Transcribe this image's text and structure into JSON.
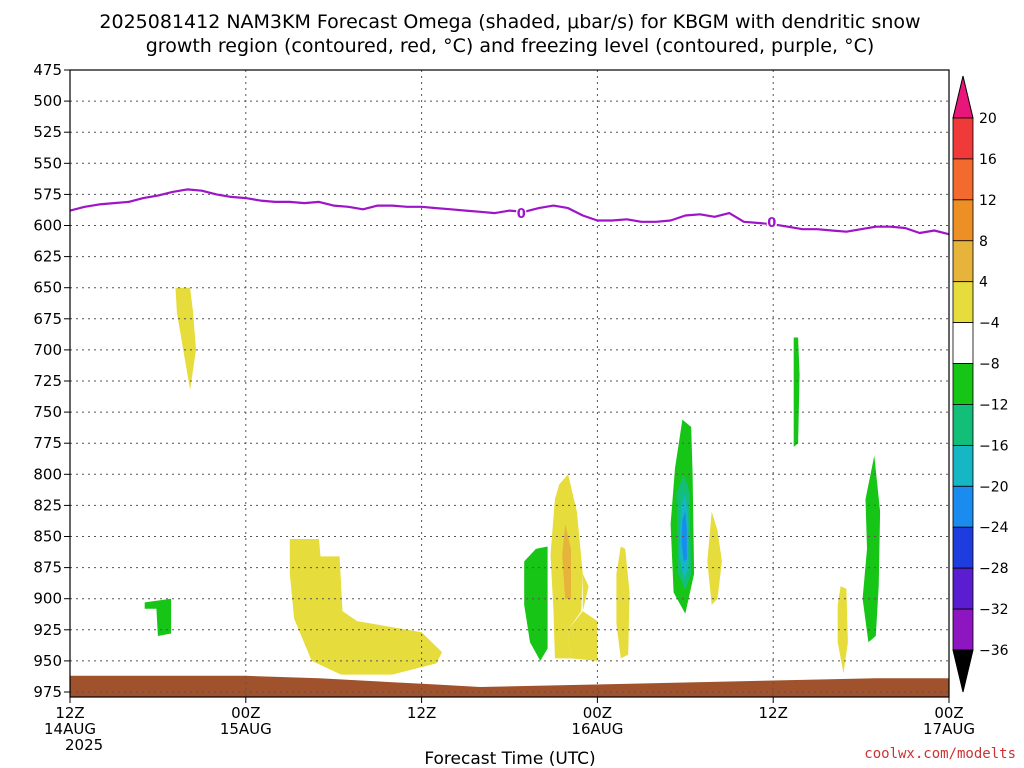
{
  "title_line1": "2025081412 NAM3KM Forecast Omega (shaded, μbar/s) for KBGM with dendritic snow",
  "title_line2": "growth region (contoured, red, °C) and freezing level (contoured, purple, °C)",
  "credit": "coolwx.com/modelts",
  "credit_color": "#cc3333",
  "chart_data": {
    "type": "heatmap",
    "title": "2025081412 NAM3KM Forecast Omega (shaded, μbar/s) for KBGM with dendritic snow growth region (contoured, red, °C) and freezing level (contoured, purple, °C)",
    "xlabel": "Forecast Time (UTC)",
    "ylabel": "",
    "x_unit": "hours after 2025081412",
    "xlim": [
      0,
      60
    ],
    "ylim": [
      975,
      475
    ],
    "y_ticks": [
      475,
      500,
      525,
      550,
      575,
      600,
      625,
      650,
      675,
      700,
      725,
      750,
      775,
      800,
      825,
      850,
      875,
      900,
      925,
      950,
      975
    ],
    "x_ticks": [
      {
        "x": 0,
        "line1": "12Z",
        "line2": "14AUG",
        "line3": "2025"
      },
      {
        "x": 12,
        "line1": "00Z",
        "line2": "15AUG"
      },
      {
        "x": 24,
        "line1": "12Z"
      },
      {
        "x": 36,
        "line1": "00Z",
        "line2": "16AUG"
      },
      {
        "x": 48,
        "line1": "12Z"
      },
      {
        "x": 60,
        "line1": "00Z",
        "line2": "17AUG"
      }
    ],
    "grid": true,
    "colorbar": {
      "levels": [
        20,
        16,
        12,
        8,
        4,
        -4,
        -8,
        -12,
        -16,
        -20,
        -24,
        -28,
        -32,
        -36
      ],
      "colors": [
        "#e8157a",
        "#f03a3a",
        "#f26a2e",
        "#ec8f24",
        "#e6b43a",
        "#e6dc3c",
        "#ffffff",
        "#16c516",
        "#13bf78",
        "#14b7c3",
        "#1a8cf0",
        "#1f3ddf",
        "#5a1ed0",
        "#8e16c0",
        "#aaaaaa",
        "#000000"
      ]
    },
    "freezing_level": {
      "color": "#9e14c8",
      "label": "0",
      "label_at": [
        {
          "x": 30.8,
          "p": 590
        },
        {
          "x": 47.9,
          "p": 597
        }
      ],
      "x": [
        0,
        1,
        2,
        3,
        4,
        5,
        6,
        7,
        8,
        9,
        10,
        11,
        12,
        13,
        14,
        15,
        16,
        17,
        18,
        19,
        20,
        21,
        22,
        23,
        24,
        25,
        26,
        27,
        28,
        29,
        30,
        31,
        32,
        33,
        34,
        35,
        36,
        37,
        38,
        39,
        40,
        41,
        42,
        43,
        44,
        45,
        46,
        47,
        48,
        49,
        50,
        51,
        52,
        53,
        54,
        55,
        56,
        57,
        58,
        59,
        60
      ],
      "p": [
        588,
        585,
        583,
        582,
        581,
        578,
        576,
        573,
        571,
        572,
        575,
        577,
        578,
        580,
        581,
        581,
        582,
        581,
        584,
        585,
        587,
        584,
        584,
        585,
        585,
        586,
        587,
        588,
        589,
        590,
        588,
        589,
        586,
        584,
        586,
        592,
        596,
        596,
        595,
        597,
        597,
        596,
        592,
        591,
        593,
        590,
        597,
        598,
        599,
        601,
        603,
        603,
        604,
        605,
        603,
        601,
        601,
        602,
        606,
        604,
        607
      ]
    },
    "omega_regions": [
      {
        "category": "4 to 8",
        "color": "#e6dc3c",
        "pts": [
          [
            7.2,
            650
          ],
          [
            8.2,
            650
          ],
          [
            8.4,
            670
          ],
          [
            8.6,
            700
          ],
          [
            8.2,
            732
          ],
          [
            7.8,
            705
          ],
          [
            7.3,
            670
          ]
        ]
      },
      {
        "category": "4 to 8",
        "color": "#e6dc3c",
        "pts": [
          [
            15.0,
            852
          ],
          [
            17.0,
            852
          ],
          [
            17.1,
            866
          ],
          [
            18.4,
            866
          ],
          [
            18.6,
            910
          ],
          [
            19.6,
            918
          ],
          [
            24.0,
            927
          ],
          [
            25.4,
            943
          ],
          [
            25.0,
            952
          ],
          [
            22.0,
            961
          ],
          [
            18.5,
            961
          ],
          [
            16.5,
            950
          ],
          [
            15.3,
            916
          ],
          [
            15.0,
            880
          ]
        ]
      },
      {
        "category": "4 to 8",
        "color": "#e6dc3c",
        "pts": [
          [
            33.4,
            808
          ],
          [
            34.0,
            800
          ],
          [
            34.6,
            830
          ],
          [
            35.0,
            880
          ],
          [
            34.9,
            910
          ],
          [
            34.0,
            925
          ],
          [
            34.2,
            948
          ],
          [
            33.1,
            948
          ],
          [
            33.0,
            910
          ],
          [
            32.8,
            865
          ],
          [
            33.1,
            820
          ]
        ]
      },
      {
        "category": "4 to 8",
        "color": "#e6dc3c",
        "pts": [
          [
            34.0,
            925
          ],
          [
            35.0,
            910
          ],
          [
            36.0,
            918
          ],
          [
            36.0,
            950
          ],
          [
            34.2,
            948
          ]
        ]
      },
      {
        "category": "4 to 8",
        "color": "#e6dc3c",
        "pts": [
          [
            35.0,
            880
          ],
          [
            35.4,
            890
          ],
          [
            35.0,
            910
          ]
        ]
      },
      {
        "category": "4 to 8",
        "color": "#e6dc3c",
        "pts": [
          [
            37.6,
            858
          ],
          [
            37.9,
            860
          ],
          [
            38.2,
            895
          ],
          [
            38.1,
            945
          ],
          [
            37.6,
            948
          ],
          [
            37.3,
            920
          ],
          [
            37.3,
            880
          ]
        ]
      },
      {
        "category": "4 to 8",
        "color": "#e6dc3c",
        "pts": [
          [
            43.8,
            830
          ],
          [
            44.2,
            845
          ],
          [
            44.5,
            870
          ],
          [
            44.2,
            900
          ],
          [
            43.8,
            905
          ],
          [
            43.5,
            870
          ]
        ]
      },
      {
        "category": "4 to 8",
        "color": "#e6dc3c",
        "pts": [
          [
            52.6,
            890
          ],
          [
            53.0,
            892
          ],
          [
            53.1,
            935
          ],
          [
            52.8,
            960
          ],
          [
            52.4,
            935
          ],
          [
            52.4,
            905
          ]
        ]
      },
      {
        "category": "8 to 12",
        "color": "#e6b43a",
        "pts": [
          [
            33.8,
            840
          ],
          [
            34.2,
            860
          ],
          [
            34.2,
            900
          ],
          [
            33.8,
            900
          ],
          [
            33.6,
            865
          ]
        ]
      },
      {
        "category": "-8 to -4",
        "color": "#16c516",
        "pts": [
          [
            5.1,
            903
          ],
          [
            6.9,
            900
          ],
          [
            6.9,
            928
          ],
          [
            6.0,
            930
          ],
          [
            5.9,
            908
          ],
          [
            5.1,
            908
          ]
        ]
      },
      {
        "category": "-8 to -4",
        "color": "#16c516",
        "pts": [
          [
            31.0,
            870
          ],
          [
            31.8,
            860
          ],
          [
            32.6,
            858
          ],
          [
            32.6,
            940
          ],
          [
            32.1,
            950
          ],
          [
            31.4,
            935
          ],
          [
            31.0,
            905
          ]
        ]
      },
      {
        "category": "-8 to -4",
        "color": "#16c516",
        "pts": [
          [
            41.3,
            795
          ],
          [
            41.8,
            756
          ],
          [
            42.4,
            762
          ],
          [
            42.5,
            800
          ],
          [
            42.6,
            880
          ],
          [
            42.0,
            912
          ],
          [
            41.2,
            895
          ],
          [
            41.0,
            840
          ]
        ]
      },
      {
        "category": "-8 to -4",
        "color": "#16c516",
        "pts": [
          [
            49.4,
            690
          ],
          [
            49.7,
            690
          ],
          [
            49.8,
            720
          ],
          [
            49.7,
            775
          ],
          [
            49.4,
            778
          ],
          [
            49.4,
            740
          ]
        ]
      },
      {
        "category": "-8 to -4",
        "color": "#16c516",
        "pts": [
          [
            54.3,
            820
          ],
          [
            54.9,
            785
          ],
          [
            55.3,
            830
          ],
          [
            55.2,
            890
          ],
          [
            55.0,
            930
          ],
          [
            54.5,
            935
          ],
          [
            54.1,
            900
          ],
          [
            54.4,
            860
          ]
        ]
      },
      {
        "category": "-12 to -8",
        "color": "#13bf78",
        "pts": [
          [
            41.4,
            815
          ],
          [
            41.9,
            800
          ],
          [
            42.3,
            815
          ],
          [
            42.4,
            880
          ],
          [
            42.0,
            893
          ],
          [
            41.5,
            880
          ]
        ]
      },
      {
        "category": "-16 to -12",
        "color": "#14b7c3",
        "pts": [
          [
            41.7,
            825
          ],
          [
            42.0,
            815
          ],
          [
            42.2,
            835
          ],
          [
            42.2,
            875
          ],
          [
            41.9,
            885
          ],
          [
            41.6,
            865
          ]
        ]
      },
      {
        "category": "-20 to -16",
        "color": "#1a8cf0",
        "pts": [
          [
            41.8,
            836
          ],
          [
            42.0,
            830
          ],
          [
            42.1,
            845
          ],
          [
            42.1,
            868
          ],
          [
            41.9,
            870
          ],
          [
            41.75,
            855
          ]
        ]
      }
    ],
    "terrain": {
      "color": "#a0522d",
      "x": [
        0,
        12,
        17,
        25,
        28,
        55,
        60
      ],
      "p": [
        962,
        962,
        964,
        969,
        971,
        964,
        964
      ]
    }
  }
}
